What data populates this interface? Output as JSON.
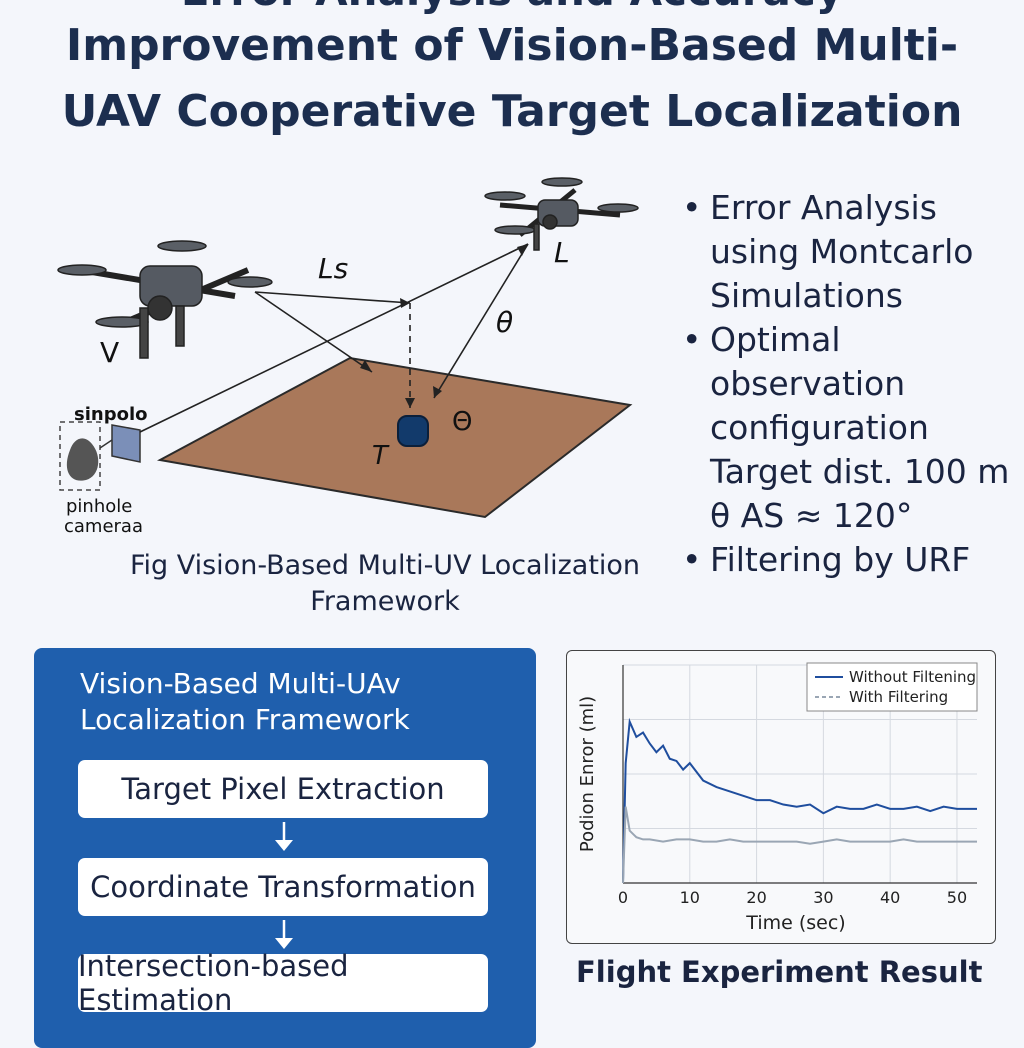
{
  "title": {
    "line0": "Error Analysis and Accuracy",
    "line1": "Improvement of Vision-Based Multi-",
    "line2": "UAV Cooperative Target Localization"
  },
  "scene": {
    "label_ls": "Ls",
    "label_l": "L",
    "label_theta": "θ",
    "label_v": "V",
    "label_t": "T",
    "label_theta2": "Θ",
    "label_sinpolo": "sinpolo",
    "label_pinhole1": "pinhole",
    "label_pinhole2": "cameraa",
    "ground_color": "#a9785a",
    "target_color": "#123a6b"
  },
  "caption": {
    "line1": "Fig Vision-Based Multi-UV Localization",
    "line2": "Framework"
  },
  "bullets": [
    {
      "dot": "•",
      "lines": [
        "Error Analysis",
        "using Montcarlo",
        "Simulations"
      ]
    },
    {
      "dot": "•",
      "lines": [
        "Optimal",
        "observation",
        "configuration"
      ]
    },
    {
      "dot": "",
      "lines": [
        "Target dist. 100 m",
        "θ AS ≈ 120°"
      ]
    },
    {
      "dot": "•",
      "lines": [
        "Filtering by URF"
      ]
    }
  ],
  "framework": {
    "title1": "Vision-Based Multi-UAv",
    "title2": "Localization Framework",
    "steps": [
      "Target Pixel Extraction",
      "Coordinate Transformation",
      "Intersection-based Estimation"
    ],
    "panel_color": "#1f5fad"
  },
  "chart_caption": "Flight Experiment Result",
  "chart_data": {
    "type": "line",
    "xlabel": "Time (sec)",
    "ylabel": "Podion Enror (ml)",
    "xlim": [
      0,
      53
    ],
    "xticks": [
      0,
      10,
      20,
      30,
      40,
      50
    ],
    "ylim": [
      0,
      1
    ],
    "grid": true,
    "legend_position": "top-right",
    "series": [
      {
        "name": "Without Filtening",
        "color": "#1f4e9e",
        "x": [
          0,
          0.4,
          1,
          2,
          3,
          4,
          5,
          6,
          7,
          8,
          9,
          10,
          12,
          14,
          16,
          18,
          20,
          22,
          24,
          26,
          28,
          30,
          32,
          34,
          36,
          38,
          40,
          42,
          44,
          46,
          48,
          50,
          53
        ],
        "y": [
          0.0,
          0.55,
          0.74,
          0.67,
          0.69,
          0.64,
          0.6,
          0.63,
          0.57,
          0.56,
          0.52,
          0.55,
          0.47,
          0.44,
          0.42,
          0.4,
          0.38,
          0.38,
          0.36,
          0.35,
          0.36,
          0.32,
          0.35,
          0.34,
          0.34,
          0.36,
          0.34,
          0.34,
          0.35,
          0.33,
          0.35,
          0.34,
          0.34
        ]
      },
      {
        "name": "With Filtering",
        "color": "#9aa6b4",
        "x": [
          0,
          0.4,
          1,
          2,
          3,
          4,
          6,
          8,
          10,
          12,
          14,
          16,
          18,
          20,
          22,
          24,
          26,
          28,
          30,
          32,
          34,
          36,
          38,
          40,
          42,
          44,
          46,
          48,
          50,
          53
        ],
        "y": [
          0.0,
          0.35,
          0.24,
          0.21,
          0.2,
          0.2,
          0.19,
          0.2,
          0.2,
          0.19,
          0.19,
          0.2,
          0.19,
          0.19,
          0.19,
          0.19,
          0.19,
          0.18,
          0.19,
          0.2,
          0.19,
          0.19,
          0.19,
          0.19,
          0.2,
          0.19,
          0.19,
          0.19,
          0.19,
          0.19
        ]
      }
    ]
  }
}
